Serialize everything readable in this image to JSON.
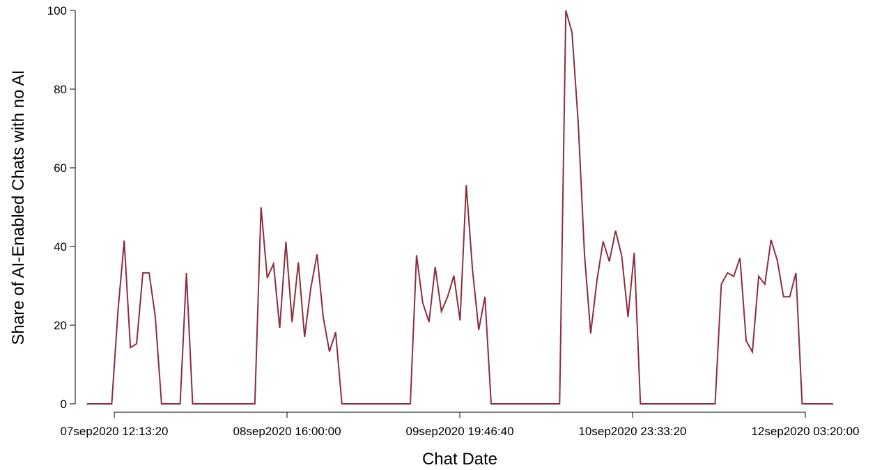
{
  "chart_data": {
    "type": "line",
    "xlabel": "Chat Date",
    "ylabel": "Share of AI-Enabled Chats with no AI",
    "ylim": [
      0,
      100
    ],
    "yticks": [
      0,
      20,
      40,
      60,
      80,
      100
    ],
    "x_tick_labels": [
      "07sep2020 12:13:20",
      "08sep2020 16:00:00",
      "09sep2020 19:46:40",
      "10sep2020 23:33:20",
      "12sep2020 03:20:00"
    ],
    "x_tick_hours": [
      0,
      27.78,
      55.56,
      83.33,
      111.11
    ],
    "grid": false,
    "line_color": "#8b2e3c",
    "series": [
      {
        "x_hours": [
          -4.4,
          -0.4,
          0.6,
          1.6,
          2.6,
          3.6,
          4.6,
          5.6,
          6.6,
          7.6,
          10.6,
          11.6,
          12.6,
          14.6,
          19.6,
          22.6,
          23.6,
          24.6,
          25.6,
          26.6,
          27.6,
          28.6,
          29.6,
          30.6,
          31.6,
          32.6,
          33.6,
          34.6,
          35.6,
          36.6,
          47.6,
          48.6,
          49.6,
          50.6,
          51.6,
          52.6,
          53.6,
          54.6,
          55.6,
          56.6,
          57.6,
          58.6,
          59.6,
          60.6,
          71.6,
          72.6,
          73.6,
          74.6,
          75.6,
          76.6,
          77.6,
          78.6,
          79.6,
          80.6,
          81.6,
          82.6,
          83.6,
          84.6,
          85.6,
          86.6,
          96.6,
          97.6,
          98.6,
          99.6,
          100.6,
          101.6,
          102.6,
          103.6,
          104.6,
          105.6,
          106.6,
          107.6,
          108.6,
          109.6,
          110.6,
          115.6
        ],
        "values": [
          0,
          0,
          23.7,
          41.5,
          14.3,
          15.3,
          33.3,
          33.3,
          22.2,
          0,
          0,
          33.3,
          0,
          0,
          0,
          0,
          50,
          32,
          35.6,
          19.3,
          41.2,
          20.8,
          36,
          17,
          29.4,
          38,
          22,
          13.3,
          18.2,
          0,
          0,
          37.8,
          25.7,
          20.8,
          34.8,
          23.5,
          27.2,
          32.6,
          21.2,
          55.6,
          34,
          18.8,
          27.2,
          0,
          0,
          100,
          94.4,
          71.4,
          38,
          17.9,
          31.3,
          41.3,
          36.2,
          44,
          37.5,
          22.1,
          38.4,
          0,
          0,
          0,
          0,
          30.4,
          33.3,
          32.4,
          37.1,
          16,
          13.2,
          32.4,
          30.4,
          41.7,
          36.5,
          27.2,
          27.2,
          33.3,
          0,
          0
        ]
      }
    ]
  }
}
